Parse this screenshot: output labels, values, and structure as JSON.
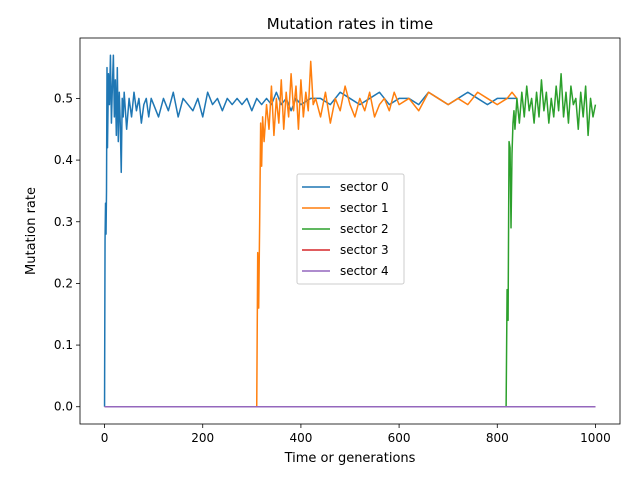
{
  "chart_data": {
    "type": "line",
    "title": "Mutation rates in time",
    "xlabel": "Time or generations",
    "ylabel": "Mutation rate",
    "xlim": [
      -50,
      1050
    ],
    "ylim": [
      -0.028,
      0.598
    ],
    "xticks": [
      0,
      200,
      400,
      600,
      800,
      1000
    ],
    "yticks": [
      0.0,
      0.1,
      0.2,
      0.3,
      0.4,
      0.5
    ],
    "grid": false,
    "legend_position": "center",
    "series": [
      {
        "name": "sector 0",
        "color": "#1f77b4",
        "x": [
          0,
          1,
          2,
          3,
          4,
          5,
          6,
          8,
          10,
          12,
          14,
          16,
          18,
          20,
          22,
          24,
          26,
          28,
          30,
          32,
          34,
          36,
          38,
          40,
          45,
          50,
          55,
          60,
          65,
          70,
          75,
          80,
          85,
          90,
          95,
          100,
          110,
          120,
          130,
          140,
          150,
          160,
          170,
          180,
          190,
          200,
          210,
          220,
          230,
          240,
          250,
          260,
          270,
          280,
          290,
          300,
          310,
          320,
          330,
          340,
          350,
          360,
          370,
          380,
          390,
          400,
          420,
          440,
          460,
          480,
          500,
          520,
          540,
          560,
          580,
          600,
          620,
          640,
          660,
          680,
          700,
          720,
          740,
          760,
          780,
          800,
          820,
          840
        ],
        "y": [
          0.0,
          0.27,
          0.33,
          0.28,
          0.35,
          0.55,
          0.42,
          0.54,
          0.49,
          0.57,
          0.46,
          0.52,
          0.57,
          0.47,
          0.53,
          0.44,
          0.55,
          0.43,
          0.51,
          0.46,
          0.38,
          0.5,
          0.47,
          0.51,
          0.45,
          0.5,
          0.47,
          0.51,
          0.48,
          0.5,
          0.46,
          0.49,
          0.5,
          0.47,
          0.5,
          0.49,
          0.47,
          0.5,
          0.48,
          0.51,
          0.47,
          0.5,
          0.49,
          0.48,
          0.5,
          0.47,
          0.51,
          0.49,
          0.5,
          0.48,
          0.5,
          0.49,
          0.5,
          0.49,
          0.5,
          0.48,
          0.5,
          0.49,
          0.5,
          0.49,
          0.51,
          0.49,
          0.5,
          0.48,
          0.5,
          0.49,
          0.5,
          0.5,
          0.49,
          0.51,
          0.5,
          0.49,
          0.5,
          0.51,
          0.49,
          0.5,
          0.5,
          0.49,
          0.51,
          0.5,
          0.49,
          0.5,
          0.51,
          0.5,
          0.49,
          0.5,
          0.5,
          0.5
        ]
      },
      {
        "name": "sector 1",
        "color": "#ff7f0e",
        "x": [
          0,
          310,
          312,
          314,
          316,
          318,
          320,
          322,
          325,
          330,
          335,
          340,
          345,
          350,
          355,
          360,
          365,
          370,
          375,
          380,
          385,
          390,
          395,
          400,
          405,
          410,
          415,
          420,
          425,
          430,
          440,
          450,
          460,
          470,
          480,
          490,
          500,
          510,
          520,
          530,
          540,
          550,
          560,
          570,
          580,
          590,
          600,
          620,
          640,
          660,
          680,
          700,
          720,
          740,
          760,
          780,
          800,
          820,
          830,
          840
        ],
        "y": [
          0.0,
          0.0,
          0.25,
          0.16,
          0.3,
          0.46,
          0.39,
          0.47,
          0.43,
          0.49,
          0.45,
          0.52,
          0.44,
          0.5,
          0.46,
          0.53,
          0.45,
          0.51,
          0.47,
          0.54,
          0.48,
          0.52,
          0.45,
          0.53,
          0.47,
          0.51,
          0.48,
          0.56,
          0.49,
          0.5,
          0.47,
          0.51,
          0.46,
          0.5,
          0.48,
          0.52,
          0.49,
          0.47,
          0.5,
          0.48,
          0.51,
          0.47,
          0.49,
          0.5,
          0.48,
          0.51,
          0.49,
          0.5,
          0.48,
          0.51,
          0.5,
          0.49,
          0.5,
          0.49,
          0.51,
          0.5,
          0.49,
          0.5,
          0.51,
          0.5
        ]
      },
      {
        "name": "sector 2",
        "color": "#2ca02c",
        "x": [
          0,
          818,
          820,
          822,
          824,
          826,
          828,
          830,
          832,
          834,
          836,
          840,
          845,
          850,
          855,
          860,
          865,
          870,
          875,
          880,
          885,
          890,
          895,
          900,
          905,
          910,
          915,
          920,
          925,
          930,
          935,
          940,
          945,
          950,
          955,
          960,
          965,
          970,
          975,
          980,
          985,
          990,
          995,
          1000
        ],
        "y": [
          0.0,
          0.0,
          0.19,
          0.14,
          0.43,
          0.42,
          0.29,
          0.41,
          0.46,
          0.48,
          0.45,
          0.5,
          0.46,
          0.51,
          0.47,
          0.52,
          0.48,
          0.5,
          0.46,
          0.51,
          0.47,
          0.53,
          0.48,
          0.51,
          0.46,
          0.5,
          0.47,
          0.52,
          0.48,
          0.54,
          0.47,
          0.51,
          0.46,
          0.52,
          0.49,
          0.5,
          0.45,
          0.51,
          0.47,
          0.52,
          0.44,
          0.5,
          0.47,
          0.49
        ]
      },
      {
        "name": "sector 3",
        "color": "#d62728",
        "x": [
          0,
          1000
        ],
        "y": [
          0.0,
          0.0
        ]
      },
      {
        "name": "sector 4",
        "color": "#9467bd",
        "x": [
          0,
          1000
        ],
        "y": [
          0.0,
          0.0
        ]
      }
    ]
  }
}
